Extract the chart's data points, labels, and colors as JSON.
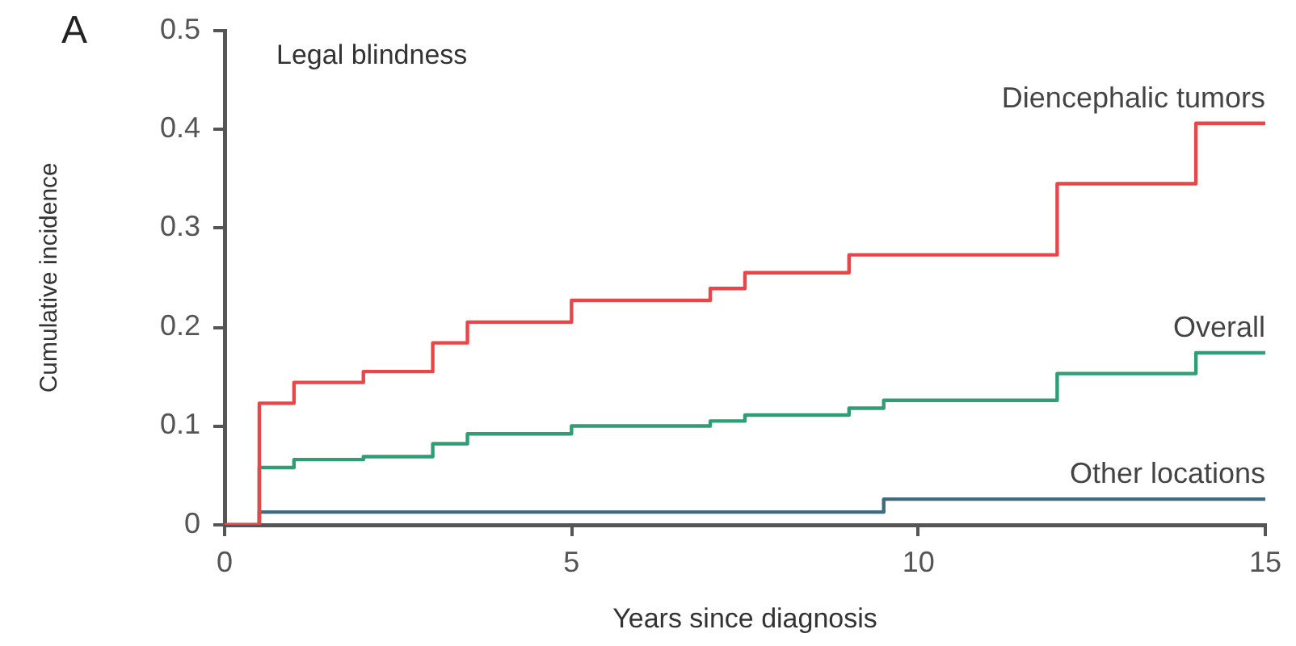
{
  "chart_data": {
    "type": "step",
    "title": "Legal blindness",
    "xlabel": "Years since diagnosis",
    "ylabel": "Cumulative incidence",
    "annotations": [
      "A"
    ],
    "series": [
      {
        "name": "Diencephalic tumors",
        "color": "#e8474a",
        "x": [
          0,
          0.5,
          1,
          2,
          3,
          3.5,
          5,
          7,
          7.5,
          9,
          12,
          14,
          15
        ],
        "values": [
          0,
          0.123,
          0.144,
          0.155,
          0.184,
          0.205,
          0.227,
          0.239,
          0.255,
          0.273,
          0.345,
          0.406,
          0.406
        ]
      },
      {
        "name": "Overall",
        "color": "#2e9e74",
        "x": [
          0,
          0.5,
          1,
          2,
          3,
          3.5,
          5,
          7,
          7.5,
          9,
          9.5,
          12,
          14,
          15
        ],
        "values": [
          0,
          0.058,
          0.066,
          0.069,
          0.082,
          0.092,
          0.1,
          0.105,
          0.111,
          0.118,
          0.126,
          0.153,
          0.174,
          0.174
        ]
      },
      {
        "name": "Other locations",
        "color": "#3e6b7d",
        "x": [
          0,
          0.5,
          9.5,
          15
        ],
        "values": [
          0,
          0.013,
          0.026,
          0.026
        ]
      }
    ],
    "xlim": [
      0,
      15
    ],
    "xticks": [
      0,
      5,
      10,
      15
    ],
    "ylim": [
      0,
      0.5
    ],
    "yticks": [
      0,
      0.1,
      0.2,
      0.3,
      0.4,
      0.5
    ],
    "grid": false,
    "legend": false,
    "marker": "none",
    "line_style": "solid"
  }
}
